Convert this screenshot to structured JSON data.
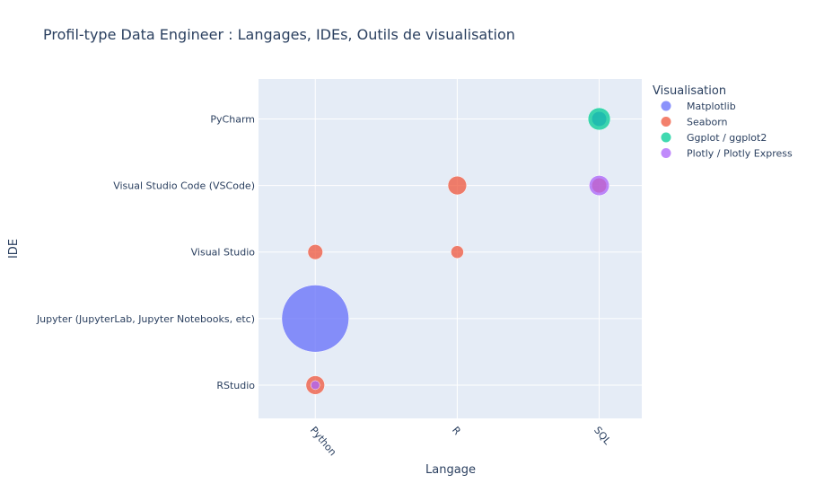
{
  "chart_data": {
    "type": "scatter",
    "title": "Profil-type Data Engineer : Langages, IDEs, Outils de visualisation",
    "xlabel": "Langage",
    "ylabel": "IDE",
    "x_categories": [
      "Python",
      "R",
      "SQL"
    ],
    "y_categories": [
      "RStudio",
      "Jupyter (JupyterLab, Jupyter Notebooks, etc)",
      "Visual Studio",
      "Visual Studio Code (VSCode)",
      "PyCharm"
    ],
    "legend_title": "Visualisation",
    "legend_position": "right",
    "grid": true,
    "series": [
      {
        "name": "Matplotlib",
        "color": "#636efa",
        "points": [
          {
            "x": "Python",
            "y": "Jupyter (JupyterLab, Jupyter Notebooks, etc)",
            "size": 9
          },
          {
            "x": "SQL",
            "y": "PyCharm",
            "size": 2
          }
        ]
      },
      {
        "name": "Seaborn",
        "color": "#EF553B",
        "points": [
          {
            "x": "Python",
            "y": "Visual Studio",
            "size": 2
          },
          {
            "x": "Python",
            "y": "RStudio",
            "size": 2.5
          },
          {
            "x": "R",
            "y": "Visual Studio Code (VSCode)",
            "size": 2.5
          },
          {
            "x": "R",
            "y": "Visual Studio",
            "size": 1.7
          },
          {
            "x": "SQL",
            "y": "Visual Studio Code (VSCode)",
            "size": 2
          }
        ]
      },
      {
        "name": "Ggplot / ggplot2",
        "color": "#00cc96",
        "points": [
          {
            "x": "SQL",
            "y": "PyCharm",
            "size": 3
          }
        ]
      },
      {
        "name": "Plotly / Plotly Express",
        "color": "#ab63fa",
        "points": [
          {
            "x": "SQL",
            "y": "Visual Studio Code (VSCode)",
            "size": 2.7
          },
          {
            "x": "Python",
            "y": "RStudio",
            "size": 1.2
          }
        ]
      }
    ]
  }
}
